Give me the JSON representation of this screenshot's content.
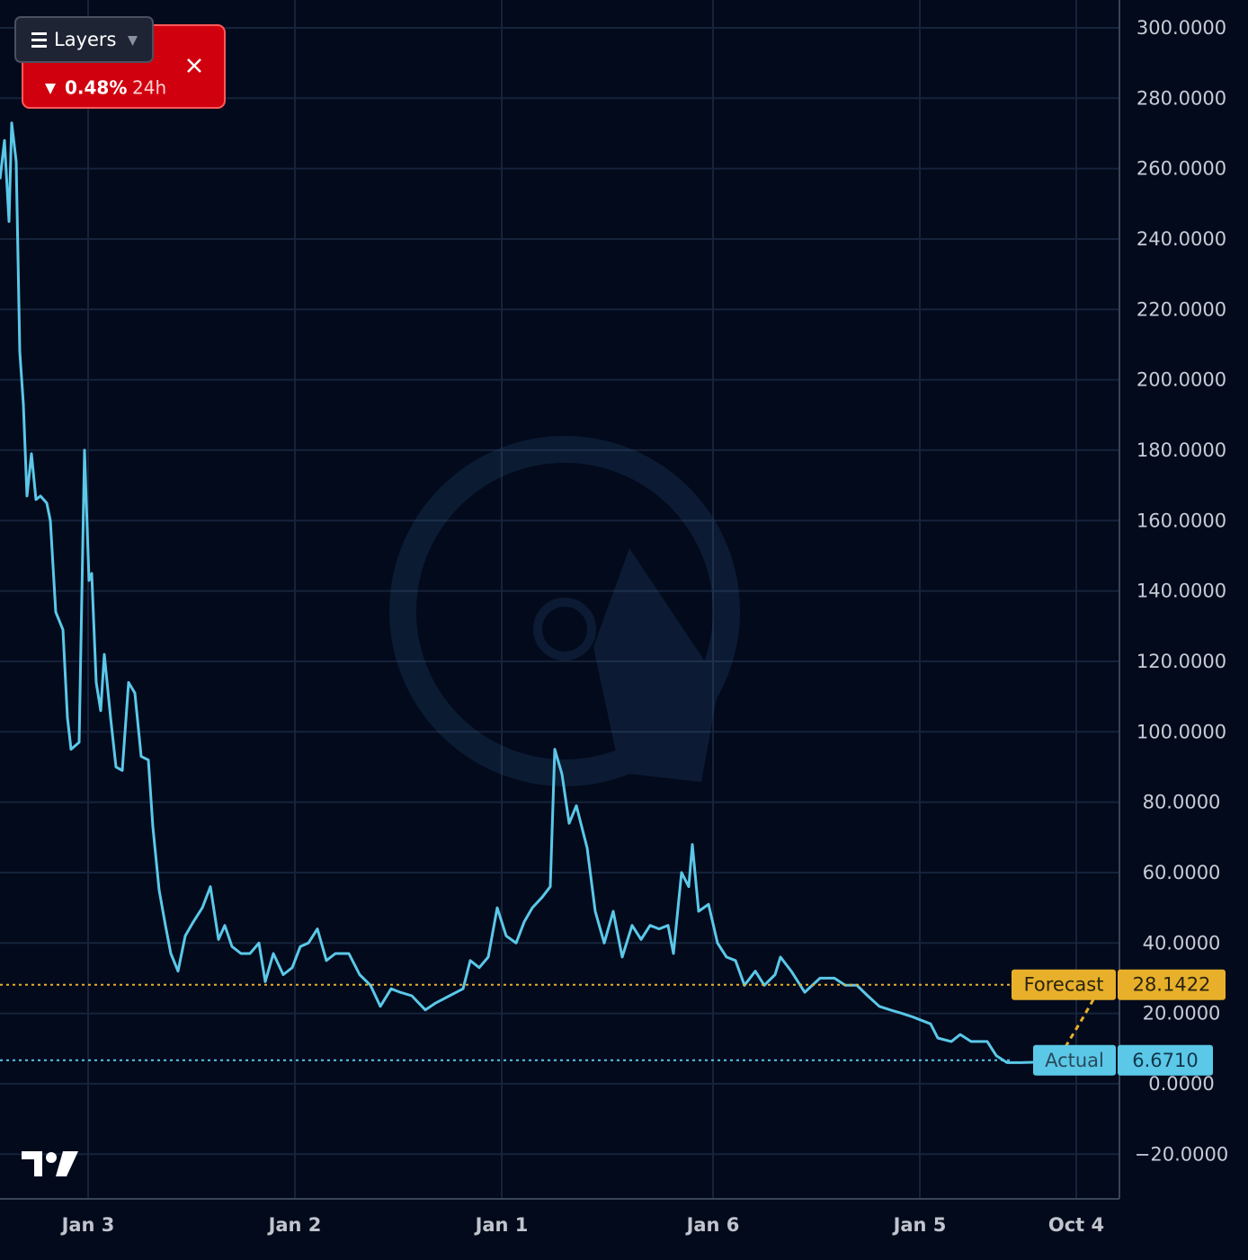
{
  "header": {
    "menu": "Layers",
    "change": "0.48%",
    "period": "24h"
  },
  "chart_data": {
    "type": "line",
    "xlim": [
      0,
      124.5
    ],
    "xticks": [
      {
        "value": 9.8,
        "label": "Jan 3"
      },
      {
        "value": 32.8,
        "label": "Jan 2"
      },
      {
        "value": 55.8,
        "label": "Jan 1"
      },
      {
        "value": 79.3,
        "label": "Jan 6"
      },
      {
        "value": 102.3,
        "label": "Jan 5"
      },
      {
        "value": 119.7,
        "label": "Oct 4"
      }
    ],
    "ylim": [
      -32.7,
      307.9
    ],
    "yticks": [
      {
        "value": -20,
        "label": "−20.0000"
      },
      {
        "value": 0,
        "label": "0.0000"
      },
      {
        "value": 20,
        "label": "20.0000"
      },
      {
        "value": 40,
        "label": "40.0000"
      },
      {
        "value": 60,
        "label": "60.0000"
      },
      {
        "value": 80,
        "label": "80.0000"
      },
      {
        "value": 100,
        "label": "100.0000"
      },
      {
        "value": 120,
        "label": "120.0000"
      },
      {
        "value": 140,
        "label": "140.0000"
      },
      {
        "value": 160,
        "label": "160.0000"
      },
      {
        "value": 180,
        "label": "180.0000"
      },
      {
        "value": 200,
        "label": "200.0000"
      },
      {
        "value": 220,
        "label": "220.0000"
      },
      {
        "value": 240,
        "label": "240.0000"
      },
      {
        "value": 260,
        "label": "260.0000"
      },
      {
        "value": 280,
        "label": "280.0000"
      },
      {
        "value": 300,
        "label": "300.0000"
      }
    ],
    "grid": true,
    "series": [
      {
        "name": "Actual",
        "color": "#5bc8e8",
        "x": [
          0,
          0.5,
          1,
          1.3,
          1.8,
          2.2,
          2.6,
          3.0,
          3.5,
          4.0,
          4.5,
          5.2,
          5.6,
          6.2,
          7.0,
          7.5,
          7.9,
          8.8,
          9.4,
          9.9,
          10.2,
          10.7,
          11.2,
          11.6,
          12.3,
          12.9,
          13.6,
          14.3,
          15.0,
          15.7,
          16.5,
          17.0,
          17.7,
          18.4,
          19.0,
          19.8,
          20.6,
          21.5,
          22.5,
          23.4,
          24.3,
          25.0,
          25.8,
          26.8,
          27.8,
          28.8,
          29.5,
          30.4,
          31.5,
          32.5,
          33.4,
          34.3,
          35.3,
          36.3,
          37.3,
          38.8,
          40.0,
          41.2,
          42.3,
          43.5,
          44.5,
          45.8,
          47.3,
          48.5,
          50.0,
          51.5,
          52.3,
          53.3,
          54.3,
          55.3,
          56.3,
          57.4,
          58.3,
          59.2,
          60.3,
          61.2,
          61.7,
          62.5,
          63.3,
          64.1,
          65.3,
          66.2,
          67.2,
          68.2,
          69.2,
          70.3,
          71.3,
          72.3,
          73.3,
          74.3,
          74.9,
          75.8,
          76.6,
          77.0,
          77.7,
          78.8,
          79.8,
          80.8,
          81.8,
          82.8,
          84.0,
          85.0,
          86.2,
          86.8,
          88.0,
          89.5,
          91.2,
          92.8,
          94.0,
          95.3,
          96.5,
          97.8,
          99.0,
          100.3,
          101.5,
          103.5,
          104.3,
          105.8,
          106.8,
          108.0,
          109.8,
          110.8,
          112.0,
          113.5,
          115.0
        ],
        "values": [
          257,
          268,
          245,
          273,
          262,
          208,
          193,
          167,
          179,
          166,
          167,
          165,
          160,
          134,
          129,
          104,
          95,
          97,
          180,
          143,
          145,
          114,
          106,
          122,
          104,
          90,
          89,
          114,
          111,
          93,
          92,
          73,
          55,
          45,
          37,
          32,
          42,
          46,
          50,
          56,
          41,
          45,
          39,
          37,
          37,
          40,
          29,
          37,
          31,
          33,
          39,
          40,
          44,
          35,
          37,
          37,
          31,
          28,
          22,
          27,
          26,
          25,
          21,
          23,
          25,
          27,
          35,
          33,
          36,
          50,
          42,
          40,
          46,
          50,
          53,
          56,
          95,
          88,
          74,
          79,
          67,
          49,
          40,
          49,
          36,
          45,
          41,
          45,
          44,
          45,
          37,
          60,
          56,
          68,
          49,
          51,
          40,
          36,
          35,
          28,
          32,
          28,
          31,
          36,
          32,
          26,
          30,
          30,
          28,
          28,
          25,
          22,
          21,
          20,
          19,
          17,
          13,
          12,
          14,
          12,
          12,
          8,
          6,
          6,
          6.1
        ]
      },
      {
        "name": "Forecast",
        "color": "#e8b02a",
        "dashed": true,
        "x": [
          118.5,
          120.5,
          122.5
        ],
        "values": [
          10.5,
          19,
          28
        ]
      }
    ],
    "reference_lines": [
      {
        "value": 28.1422,
        "label": "28.1422",
        "color": "#e8b02a"
      },
      {
        "value": 6.671,
        "label": "6.6710",
        "color": "#5bc8e8"
      }
    ]
  }
}
